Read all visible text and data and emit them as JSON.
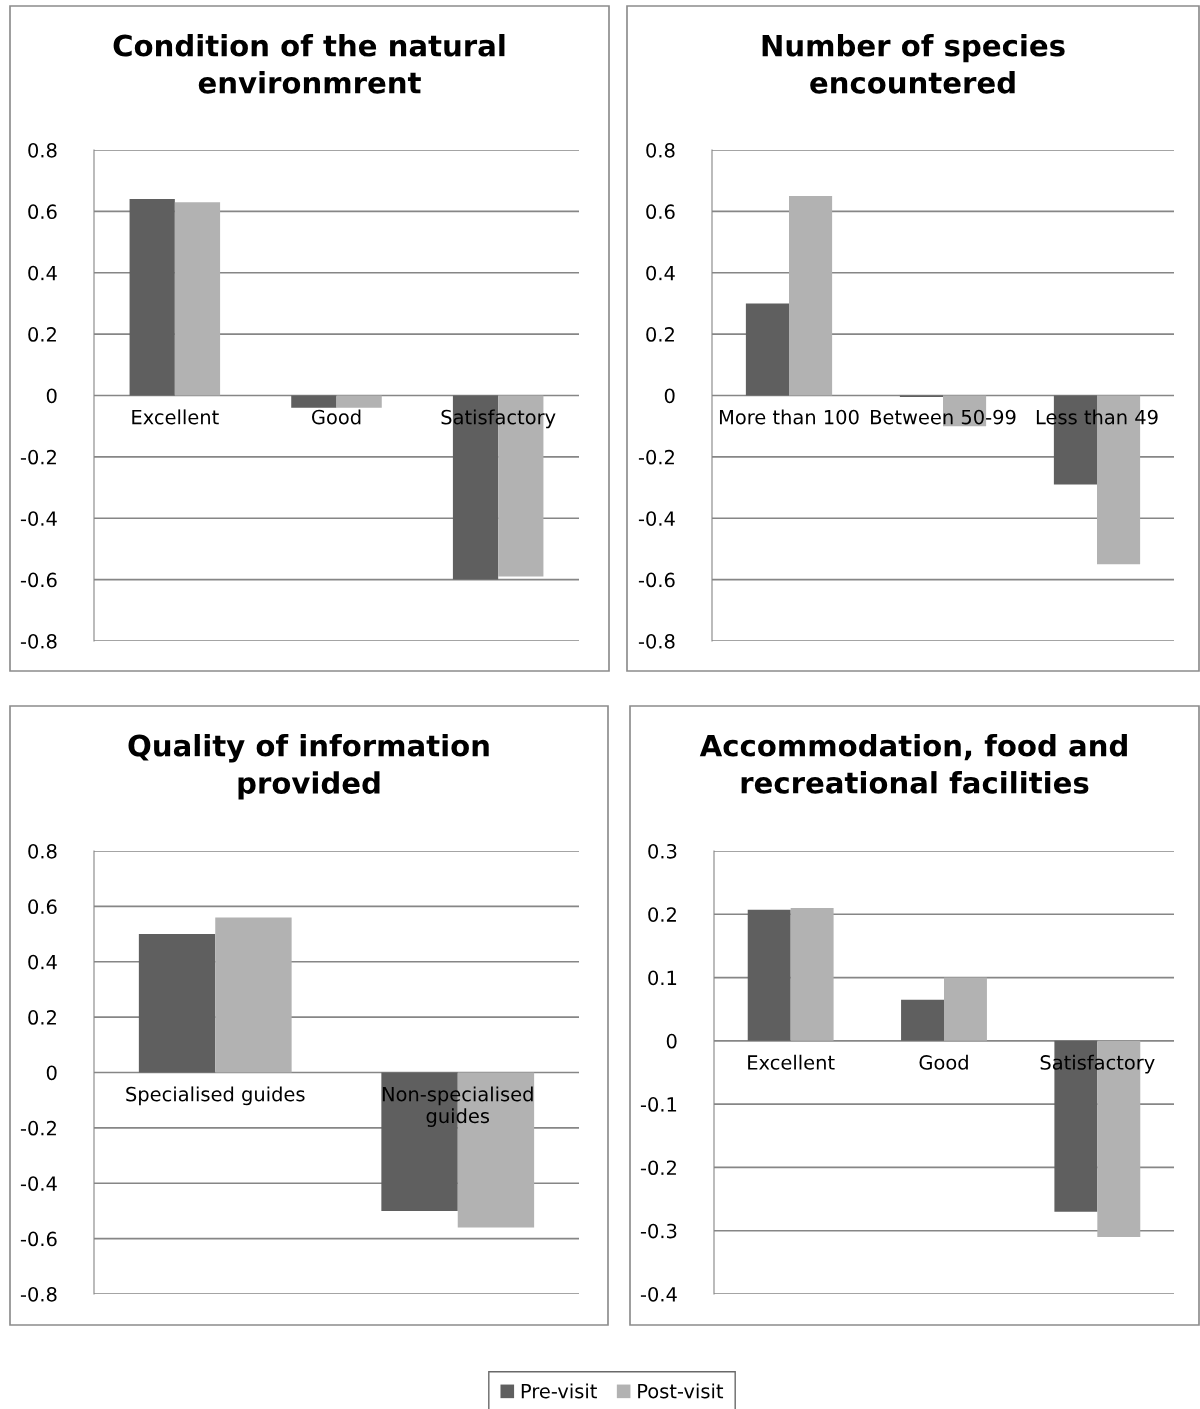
{
  "chart_data": [
    {
      "type": "bar",
      "title": "Condition of the natural environmrent",
      "categories": [
        "Excellent",
        "Good",
        "Satisfactory"
      ],
      "series": [
        {
          "name": "Pre-visit",
          "color": "#5f5f5f",
          "values": [
            0.64,
            -0.04,
            -0.6
          ]
        },
        {
          "name": "Post-visit",
          "color": "#b2b2b2",
          "values": [
            0.63,
            -0.04,
            -0.59
          ]
        }
      ],
      "ylim": [
        -0.8,
        0.8
      ],
      "yticks": [
        {
          "value": -0.8,
          "label": "-0.8"
        },
        {
          "value": -0.6,
          "label": "-0.6"
        },
        {
          "value": -0.4,
          "label": "-0.4"
        },
        {
          "value": -0.2,
          "label": "-0.2"
        },
        0,
        0.2,
        0.4,
        0.6,
        0.8
      ],
      "grid": "y",
      "legend": "bottom"
    },
    {
      "type": "bar",
      "title": "Number of species encountered",
      "categories": [
        "More than 100",
        "Between 50-99",
        "Less than 49"
      ],
      "series": [
        {
          "color": "#5f5f5f",
          "values": [
            0.3,
            -0.005,
            -0.29
          ]
        },
        {
          "color": "#b2b2b2",
          "values": [
            0.65,
            -0.1,
            -0.55
          ]
        }
      ],
      "ylim": [
        -0.8,
        0.8
      ],
      "yticks": [
        {
          "value": -0.8,
          "label": "-0.8"
        },
        {
          "value": -0.6,
          "label": "-0.6"
        },
        {
          "value": -0.4,
          "label": "-0.4"
        },
        {
          "value": -0.2,
          "label": "-0.2"
        },
        0,
        0.2,
        0.4,
        0.6,
        0.8
      ],
      "grid": "y"
    },
    {
      "type": "bar",
      "title": "Quality of information provided",
      "categories": [
        "Specialised guides",
        "Non-specialised guides"
      ],
      "series": [
        {
          "color": "#5f5f5f",
          "values": [
            0.5,
            -0.5
          ]
        },
        {
          "color": "#b2b2b2",
          "values": [
            0.56,
            -0.56
          ]
        }
      ],
      "ylim": [
        -0.8,
        0.8
      ],
      "yticks": [
        {
          "value": -0.8,
          "label": "-0.8"
        },
        {
          "value": -0.6,
          "label": "-0.6"
        },
        {
          "value": -0.4,
          "label": "-0.4"
        },
        {
          "value": -0.2,
          "label": "-0.2"
        },
        0,
        0.2,
        0.4,
        0.6,
        0.8
      ],
      "grid": "y"
    },
    {
      "type": "bar",
      "title": "Accommodation, food and recreational facilities",
      "categories": [
        "Excellent",
        "Good",
        "Satisfactory"
      ],
      "series": [
        {
          "color": "#5f5f5f",
          "values": [
            0.207,
            0.065,
            -0.27
          ]
        },
        {
          "color": "#b2b2b2",
          "values": [
            0.21,
            0.1,
            -0.31
          ]
        }
      ],
      "ylim": [
        -0.4,
        0.3
      ],
      "yticks": [
        {
          "value": -0.4,
          "label": "-0.4"
        },
        {
          "value": -0.3,
          "label": "-0.3"
        },
        {
          "value": -0.2,
          "label": "-0.2"
        },
        {
          "value": -0.1,
          "label": "-0.1"
        },
        0,
        0.1,
        0.2,
        0.3
      ],
      "grid": "y"
    }
  ]
}
